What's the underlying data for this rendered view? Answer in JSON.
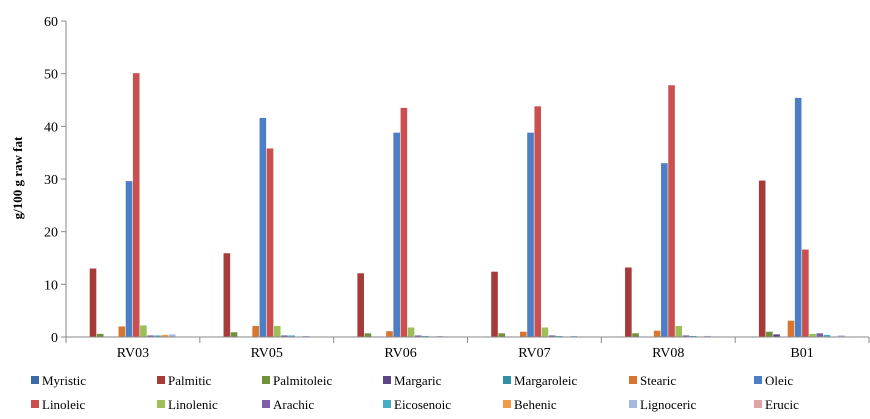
{
  "chart_data": {
    "type": "bar",
    "title": "",
    "xlabel": "",
    "ylabel": "g/100 g raw fat",
    "ylim": [
      0,
      60
    ],
    "yticks": [
      0,
      10,
      20,
      30,
      40,
      50,
      60
    ],
    "grid": false,
    "legend_position": "bottom",
    "categories": [
      "RV03",
      "RV05",
      "RV06",
      "RV07",
      "RV08",
      "B01"
    ],
    "series": [
      {
        "name": "Myristic",
        "color": "#3f6aa8",
        "values": [
          0.1,
          0.1,
          0.1,
          0.1,
          0.1,
          0.1
        ]
      },
      {
        "name": "Palmitic",
        "color": "#a63b3a",
        "values": [
          13.0,
          15.9,
          12.1,
          12.4,
          13.2,
          29.7
        ]
      },
      {
        "name": "Palmitoleic",
        "color": "#71903c",
        "values": [
          0.6,
          0.9,
          0.7,
          0.7,
          0.7,
          1.0
        ]
      },
      {
        "name": "Margaric",
        "color": "#5e4585",
        "values": [
          0.1,
          0.1,
          0.1,
          0.1,
          0.1,
          0.5
        ]
      },
      {
        "name": "Margaroleic",
        "color": "#328fa5",
        "values": [
          0.1,
          0.1,
          0.1,
          0.1,
          0.1,
          0.1
        ]
      },
      {
        "name": "Stearic",
        "color": "#d8762f",
        "values": [
          2.0,
          2.1,
          1.1,
          1.0,
          1.2,
          3.1
        ]
      },
      {
        "name": "Oleic",
        "color": "#4b7ec5",
        "values": [
          29.6,
          41.6,
          38.8,
          38.8,
          33.0,
          45.4
        ]
      },
      {
        "name": "Linoleic",
        "color": "#c9504e",
        "values": [
          50.1,
          35.8,
          43.5,
          43.8,
          47.8,
          16.6
        ]
      },
      {
        "name": "Linolenic",
        "color": "#9bbf59",
        "values": [
          2.2,
          2.1,
          1.8,
          1.8,
          2.1,
          0.6
        ]
      },
      {
        "name": "Arachic",
        "color": "#7f60a8",
        "values": [
          0.3,
          0.3,
          0.3,
          0.3,
          0.3,
          0.7
        ]
      },
      {
        "name": "Eicosenoic",
        "color": "#4aadc6",
        "values": [
          0.3,
          0.3,
          0.2,
          0.2,
          0.2,
          0.4
        ]
      },
      {
        "name": "Behenic",
        "color": "#f49a46",
        "values": [
          0.4,
          0.1,
          0.1,
          0.1,
          0.1,
          0.1
        ]
      },
      {
        "name": "Lignoceric",
        "color": "#a5b8dd",
        "values": [
          0.5,
          0.2,
          0.2,
          0.2,
          0.2,
          0.3
        ]
      },
      {
        "name": "Erucic",
        "color": "#dea3a3",
        "values": [
          0.1,
          0.1,
          0.1,
          0.1,
          0.1,
          0.1
        ]
      }
    ]
  }
}
